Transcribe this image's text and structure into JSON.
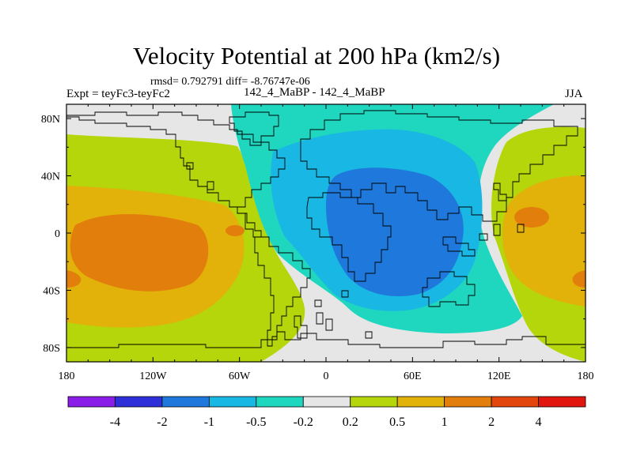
{
  "header": {
    "title": "Velocity Potential at 200 hPa (km2/s)",
    "stats": "rmsd= 0.792791 diff= -8.76747e-06",
    "expt": "Expt = teyFc3-teyFc2",
    "cases": "142_4_MaBP - 142_4_MaBP",
    "season": "JJA"
  },
  "chart_data": {
    "type": "heatmap",
    "title": "Velocity Potential at 200 hPa (km2/s)",
    "units": "km2/s",
    "xlabel": "",
    "ylabel": "",
    "x_range": [
      -180,
      180
    ],
    "y_range": [
      -90,
      90
    ],
    "x_ticks": [
      {
        "value": -180,
        "label": "180"
      },
      {
        "value": -120,
        "label": "120W"
      },
      {
        "value": -60,
        "label": "60W"
      },
      {
        "value": 0,
        "label": "0"
      },
      {
        "value": 60,
        "label": "60E"
      },
      {
        "value": 120,
        "label": "120E"
      },
      {
        "value": 180,
        "label": "180"
      }
    ],
    "y_ticks": [
      {
        "value": 80,
        "label": "80N"
      },
      {
        "value": 40,
        "label": "40N"
      },
      {
        "value": 0,
        "label": "0"
      },
      {
        "value": -40,
        "label": "40S"
      },
      {
        "value": -80,
        "label": "80S"
      }
    ],
    "contour_levels": [
      -4,
      -2,
      -1,
      -0.5,
      -0.2,
      0.2,
      0.5,
      1,
      2,
      4
    ],
    "colorbar_labels": [
      "-4",
      "-2",
      "-1",
      "-0.5",
      "-0.2",
      "0.2",
      "0.5",
      "1",
      "2",
      "4"
    ],
    "colorbar_colors": [
      "#8a1ee8",
      "#2f2fd9",
      "#1f78dc",
      "#19b7e3",
      "#1fd7bf",
      "#e6e6e6",
      "#b4d60a",
      "#e2b10a",
      "#e27e0c",
      "#e2460c",
      "#e0160f"
    ],
    "approx_extrema": {
      "min": -1.8,
      "min_location": [
        50,
        10
      ],
      "max": 1.9,
      "max_locations": [
        [
          -150,
          0
        ],
        [
          155,
          10
        ]
      ]
    },
    "coastline": true
  }
}
